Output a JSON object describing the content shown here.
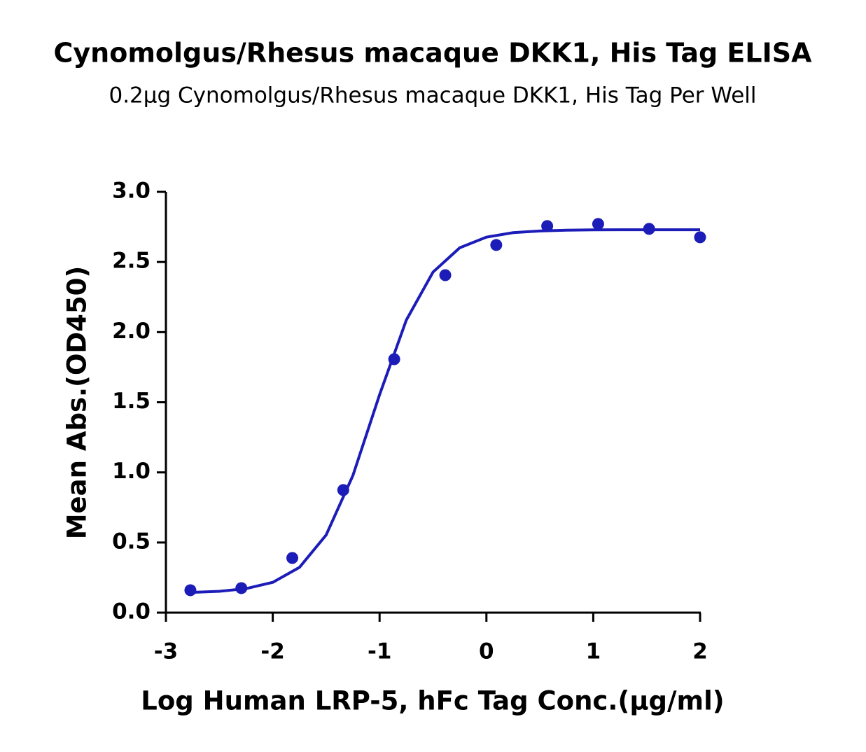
{
  "chart_data": {
    "type": "scatter",
    "title": "Cynomolgus/Rhesus macaque DKK1, His Tag ELISA",
    "subtitle": "0.2μg Cynomolgus/Rhesus macaque DKK1, His Tag Per Well",
    "x_label": "Log Human LRP-5, hFc Tag Conc.(μg/ml)",
    "y_label": "Mean Abs.(OD450)",
    "color": "#1c1cb8",
    "points": {
      "x": [
        -2.771,
        -2.294,
        -1.817,
        -1.34,
        -0.863,
        -0.385,
        0.092,
        0.569,
        1.046,
        1.523,
        2
      ],
      "values": [
        0.16,
        0.175,
        0.39,
        0.874,
        1.807,
        2.406,
        2.621,
        2.756,
        2.771,
        2.736,
        2.676
      ]
    },
    "fit": {
      "x": [
        -2.75,
        -2.5,
        -2.25,
        -2,
        -1.75,
        -1.5,
        -1.25,
        -1,
        -0.75,
        -0.5,
        -0.25,
        0,
        0.25,
        0.5,
        0.75,
        1,
        1.25,
        1.5,
        1.75,
        2
      ],
      "values": [
        0.145,
        0.152,
        0.171,
        0.216,
        0.323,
        0.554,
        0.978,
        1.554,
        2.086,
        2.428,
        2.601,
        2.677,
        2.709,
        2.721,
        2.727,
        2.729,
        2.73,
        2.73,
        2.73,
        2.73
      ]
    },
    "xlim": [
      -3,
      2
    ],
    "xticks": [
      -3,
      -2,
      -1,
      0,
      1,
      2
    ],
    "ylim": [
      0,
      3
    ],
    "yticks": [
      {
        "value": 0,
        "label": "0.0"
      },
      {
        "value": 0.5,
        "label": "0.5"
      },
      {
        "value": 1,
        "label": "1.0"
      },
      {
        "value": 1.5,
        "label": "1.5"
      },
      {
        "value": 2,
        "label": "2.0"
      },
      {
        "value": 2.5,
        "label": "2.5"
      },
      {
        "value": 3,
        "label": "3.0"
      }
    ]
  }
}
